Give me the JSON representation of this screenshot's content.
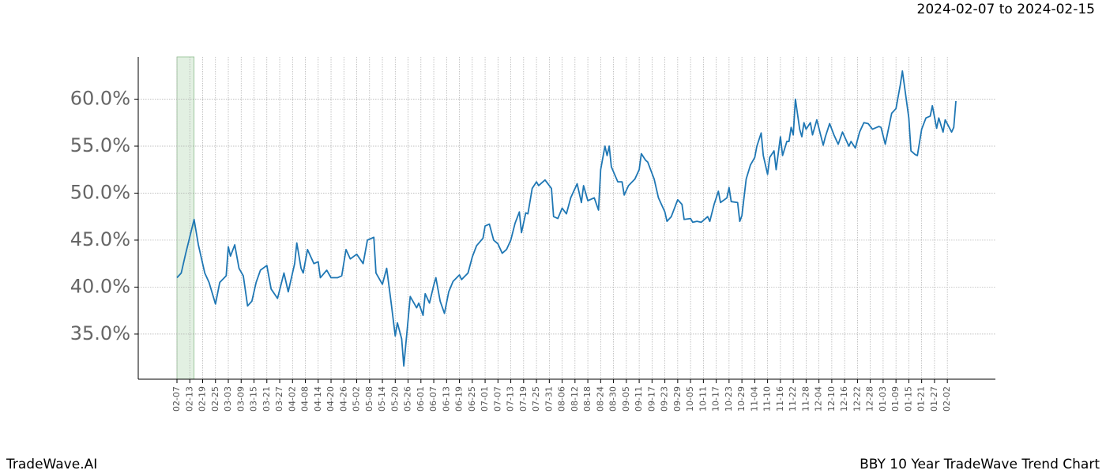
{
  "chart_data": {
    "type": "line",
    "footer_left": "TradeWave.AI",
    "footer_right": "BBY 10 Year TradeWave Trend Chart",
    "highlight": {
      "label": "2024-02-07 to 2024-02-15",
      "start": "02-07",
      "end": "02-15",
      "color": "#d6ead6"
    },
    "color": "#1f77b4",
    "grid": true,
    "ylim": [
      30.2,
      64.5
    ],
    "yticks": [
      {
        "value": 35,
        "label": "35.0%"
      },
      {
        "value": 40,
        "label": "40.0%"
      },
      {
        "value": 45,
        "label": "45.0%"
      },
      {
        "value": 50,
        "label": "50.0%"
      },
      {
        "value": 55,
        "label": "55.0%"
      },
      {
        "value": 60,
        "label": "60.0%"
      }
    ],
    "xticks": [
      "02-07",
      "02-13",
      "02-19",
      "02-25",
      "03-03",
      "03-09",
      "03-15",
      "03-21",
      "03-27",
      "04-02",
      "04-08",
      "04-14",
      "04-20",
      "04-26",
      "05-02",
      "05-08",
      "05-14",
      "05-20",
      "05-26",
      "06-01",
      "06-07",
      "06-13",
      "06-19",
      "06-25",
      "07-01",
      "07-07",
      "07-13",
      "07-19",
      "07-25",
      "07-31",
      "08-06",
      "08-12",
      "08-18",
      "08-24",
      "08-30",
      "09-05",
      "09-11",
      "09-17",
      "09-23",
      "09-29",
      "10-05",
      "10-11",
      "10-17",
      "10-23",
      "10-29",
      "11-04",
      "11-10",
      "11-16",
      "11-22",
      "11-28",
      "12-04",
      "12-10",
      "12-16",
      "12-22",
      "12-28",
      "01-03",
      "01-09",
      "01-15",
      "01-21",
      "01-27",
      "02-02"
    ],
    "x": [
      "02-07",
      "02-09",
      "02-11",
      "02-15",
      "02-17",
      "02-20",
      "02-22",
      "02-25",
      "02-27",
      "03-02",
      "03-03",
      "03-04",
      "03-06",
      "03-08",
      "03-10",
      "03-12",
      "03-14",
      "03-16",
      "03-18",
      "03-21",
      "03-23",
      "03-26",
      "03-29",
      "03-31",
      "04-03",
      "04-04",
      "04-06",
      "04-07",
      "04-09",
      "04-12",
      "04-14",
      "04-15",
      "04-18",
      "04-20",
      "04-23",
      "04-25",
      "04-27",
      "04-29",
      "05-02",
      "05-05",
      "05-07",
      "05-10",
      "05-11",
      "05-14",
      "05-16",
      "05-18",
      "05-20",
      "05-21",
      "05-23",
      "05-24",
      "05-26",
      "05-27",
      "05-30",
      "05-31",
      "06-02",
      "06-03",
      "06-05",
      "06-07",
      "06-08",
      "06-10",
      "06-12",
      "06-14",
      "06-16",
      "06-19",
      "06-20",
      "06-23",
      "06-25",
      "06-27",
      "06-30",
      "07-01",
      "07-03",
      "07-05",
      "07-07",
      "07-09",
      "07-11",
      "07-13",
      "07-15",
      "07-17",
      "07-18",
      "07-20",
      "07-21",
      "07-23",
      "07-25",
      "07-26",
      "07-29",
      "08-01",
      "08-02",
      "08-04",
      "08-06",
      "08-08",
      "08-10",
      "08-13",
      "08-15",
      "08-16",
      "08-18",
      "08-21",
      "08-23",
      "08-24",
      "08-26",
      "08-27",
      "08-28",
      "08-29",
      "09-01",
      "09-03",
      "09-04",
      "09-06",
      "09-09",
      "09-11",
      "09-12",
      "09-14",
      "09-15",
      "09-18",
      "09-20",
      "09-21",
      "09-23",
      "09-24",
      "09-26",
      "09-29",
      "10-01",
      "10-02",
      "10-05",
      "10-06",
      "10-08",
      "10-10",
      "10-13",
      "10-14",
      "10-16",
      "10-18",
      "10-19",
      "10-22",
      "10-23",
      "10-24",
      "10-27",
      "10-28",
      "10-29",
      "10-31",
      "11-02",
      "11-04",
      "11-05",
      "11-07",
      "11-08",
      "11-10",
      "11-11",
      "11-13",
      "11-14",
      "11-16",
      "11-17",
      "11-19",
      "11-20",
      "11-21",
      "11-22",
      "11-23",
      "11-25",
      "11-26",
      "11-27",
      "11-28",
      "11-30",
      "12-01",
      "12-03",
      "12-06",
      "12-07",
      "12-09",
      "12-11",
      "12-13",
      "12-15",
      "12-18",
      "12-19",
      "12-21",
      "12-23",
      "12-25",
      "12-27",
      "12-29",
      "01-01",
      "01-02",
      "01-04",
      "01-06",
      "01-07",
      "01-09",
      "01-11",
      "01-12",
      "01-15",
      "01-16",
      "01-18",
      "01-19",
      "01-21",
      "01-23",
      "01-25",
      "01-26",
      "01-28",
      "01-29",
      "01-31",
      "02-01",
      "02-04",
      "02-05",
      "02-06"
    ],
    "values": [
      41.0,
      41.5,
      43.5,
      47.2,
      44.5,
      41.5,
      40.5,
      38.2,
      40.5,
      41.2,
      44.3,
      43.3,
      44.5,
      42.0,
      41.2,
      38.0,
      38.5,
      40.5,
      41.8,
      42.3,
      39.8,
      38.8,
      41.5,
      39.5,
      42.5,
      44.7,
      42.0,
      41.5,
      44.0,
      42.5,
      42.7,
      41.0,
      41.8,
      41.0,
      41.0,
      41.2,
      44.0,
      43.0,
      43.5,
      42.5,
      45.0,
      45.3,
      41.5,
      40.3,
      42.0,
      38.5,
      34.8,
      36.2,
      34.5,
      31.6,
      36.5,
      39.0,
      37.8,
      38.3,
      37.0,
      39.3,
      38.3,
      40.2,
      41.0,
      38.5,
      37.2,
      39.5,
      40.6,
      41.3,
      40.8,
      41.5,
      43.2,
      44.4,
      45.2,
      46.5,
      46.7,
      45.0,
      44.6,
      43.6,
      44.0,
      45.0,
      46.8,
      48.0,
      45.8,
      47.9,
      47.8,
      50.5,
      51.2,
      50.8,
      51.4,
      50.5,
      47.5,
      47.3,
      48.4,
      47.8,
      49.5,
      51.0,
      49.0,
      50.8,
      49.2,
      49.5,
      48.2,
      52.5,
      55.0,
      54.0,
      55.0,
      52.8,
      51.2,
      51.2,
      49.8,
      50.8,
      51.5,
      52.5,
      54.2,
      53.5,
      53.3,
      51.5,
      49.5,
      49.0,
      48.0,
      47.0,
      47.5,
      49.3,
      48.8,
      47.2,
      47.3,
      46.9,
      47.0,
      46.9,
      47.5,
      47.0,
      48.8,
      50.2,
      49.0,
      49.5,
      50.6,
      49.1,
      49.0,
      47.0,
      47.6,
      51.5,
      53.0,
      53.8,
      55.0,
      56.4,
      54.0,
      52.0,
      53.8,
      54.5,
      52.5,
      56.0,
      54.0,
      55.5,
      55.5,
      57.0,
      56.2,
      60.0,
      56.8,
      56.0,
      57.5,
      56.8,
      57.5,
      56.2,
      57.8,
      55.1,
      56.0,
      57.4,
      56.2,
      55.2,
      56.5,
      55.0,
      55.5,
      54.8,
      56.5,
      57.5,
      57.4,
      56.8,
      57.1,
      57.0,
      55.2,
      57.4,
      58.5,
      59.0,
      61.5,
      63.0,
      58.0,
      54.5,
      54.1,
      54.0,
      56.8,
      58.0,
      58.2,
      59.3,
      56.9,
      58.0,
      56.5,
      57.8,
      56.5,
      57.0,
      59.8
    ]
  }
}
